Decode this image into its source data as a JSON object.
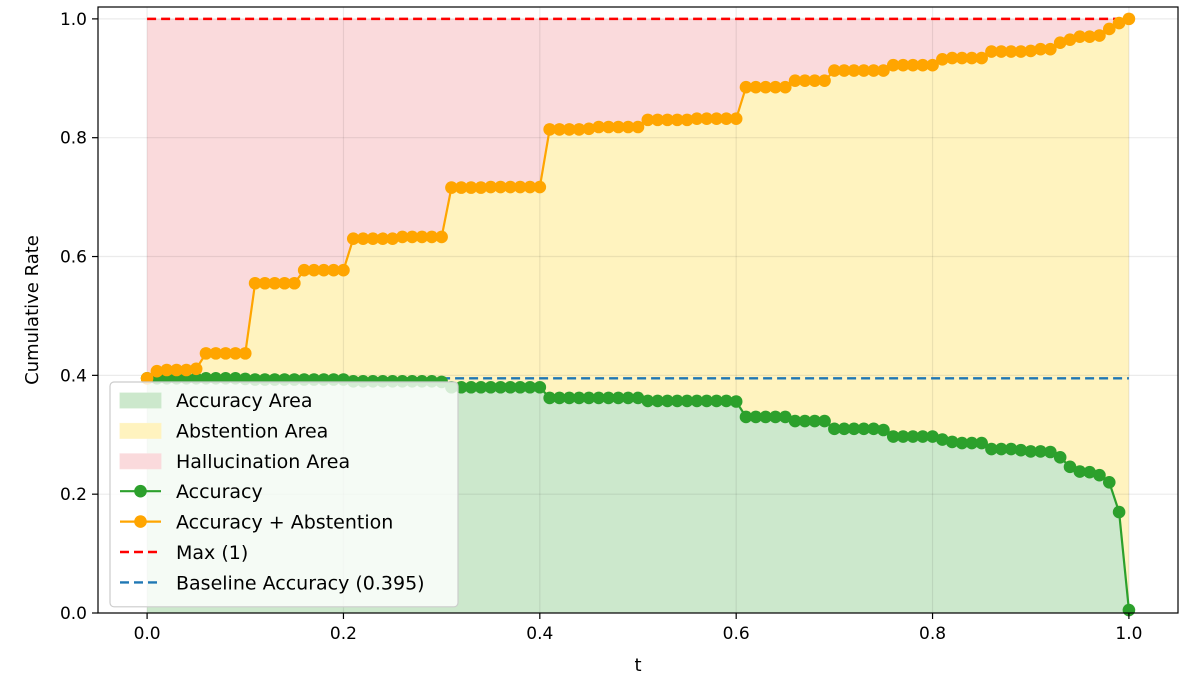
{
  "chart_data": {
    "type": "area",
    "title": "",
    "xlabel": "t",
    "ylabel": "Cumulative Rate",
    "xlim": [
      -0.05,
      1.05
    ],
    "ylim": [
      0.0,
      1.02
    ],
    "xticks": [
      "0.0",
      "0.2",
      "0.4",
      "0.6",
      "0.8",
      "1.0"
    ],
    "yticks": [
      "0.0",
      "0.2",
      "0.4",
      "0.6",
      "0.8",
      "1.0"
    ],
    "grid": true,
    "legend_position": "lower-left",
    "colors": {
      "accuracy": "#2ca02c",
      "abstention_line": "#ffa500",
      "accuracy_area": "#cce8cc",
      "abstention_area": "#fff3bf",
      "hallucination_area": "#fadadc",
      "max_line": "#ff0000",
      "baseline_line": "#1f77b4"
    },
    "x": [
      0.0,
      0.01,
      0.02,
      0.03,
      0.04,
      0.05,
      0.06,
      0.07,
      0.08,
      0.09,
      0.1,
      0.11,
      0.12,
      0.13,
      0.14,
      0.15,
      0.16,
      0.17,
      0.18,
      0.19,
      0.2,
      0.21,
      0.22,
      0.23,
      0.24,
      0.25,
      0.26,
      0.27,
      0.28,
      0.29,
      0.3,
      0.31,
      0.32,
      0.33,
      0.34,
      0.35,
      0.36,
      0.37,
      0.38,
      0.39,
      0.4,
      0.41,
      0.42,
      0.43,
      0.44,
      0.45,
      0.46,
      0.47,
      0.48,
      0.49,
      0.5,
      0.51,
      0.52,
      0.53,
      0.54,
      0.55,
      0.56,
      0.57,
      0.58,
      0.59,
      0.6,
      0.61,
      0.62,
      0.63,
      0.64,
      0.65,
      0.66,
      0.67,
      0.68,
      0.69,
      0.7,
      0.71,
      0.72,
      0.73,
      0.74,
      0.75,
      0.76,
      0.77,
      0.78,
      0.79,
      0.8,
      0.81,
      0.82,
      0.83,
      0.84,
      0.85,
      0.86,
      0.87,
      0.88,
      0.89,
      0.9,
      0.91,
      0.92,
      0.93,
      0.94,
      0.95,
      0.96,
      0.97,
      0.98,
      0.99,
      1.0
    ],
    "series": [
      {
        "name": "Accuracy",
        "values": [
          0.395,
          0.395,
          0.395,
          0.395,
          0.395,
          0.395,
          0.395,
          0.395,
          0.395,
          0.395,
          0.394,
          0.393,
          0.393,
          0.393,
          0.393,
          0.393,
          0.393,
          0.393,
          0.393,
          0.393,
          0.393,
          0.39,
          0.39,
          0.39,
          0.39,
          0.39,
          0.39,
          0.39,
          0.39,
          0.39,
          0.389,
          0.38,
          0.38,
          0.38,
          0.38,
          0.38,
          0.38,
          0.38,
          0.38,
          0.38,
          0.38,
          0.362,
          0.362,
          0.362,
          0.362,
          0.362,
          0.362,
          0.362,
          0.362,
          0.362,
          0.362,
          0.357,
          0.357,
          0.357,
          0.357,
          0.357,
          0.357,
          0.357,
          0.357,
          0.357,
          0.356,
          0.33,
          0.33,
          0.33,
          0.33,
          0.33,
          0.323,
          0.323,
          0.323,
          0.323,
          0.31,
          0.31,
          0.31,
          0.31,
          0.31,
          0.308,
          0.297,
          0.297,
          0.297,
          0.297,
          0.297,
          0.292,
          0.288,
          0.286,
          0.286,
          0.286,
          0.276,
          0.276,
          0.276,
          0.274,
          0.272,
          0.272,
          0.271,
          0.262,
          0.246,
          0.238,
          0.237,
          0.232,
          0.22,
          0.17,
          0.005
        ]
      },
      {
        "name": "Accuracy + Abstention",
        "values": [
          0.395,
          0.407,
          0.409,
          0.409,
          0.409,
          0.411,
          0.437,
          0.437,
          0.437,
          0.437,
          0.437,
          0.555,
          0.555,
          0.555,
          0.555,
          0.555,
          0.577,
          0.577,
          0.577,
          0.577,
          0.577,
          0.63,
          0.63,
          0.63,
          0.63,
          0.63,
          0.633,
          0.633,
          0.633,
          0.633,
          0.633,
          0.716,
          0.716,
          0.716,
          0.716,
          0.717,
          0.717,
          0.717,
          0.717,
          0.717,
          0.717,
          0.814,
          0.814,
          0.814,
          0.814,
          0.815,
          0.818,
          0.818,
          0.818,
          0.818,
          0.818,
          0.83,
          0.83,
          0.83,
          0.83,
          0.83,
          0.832,
          0.832,
          0.832,
          0.832,
          0.832,
          0.885,
          0.885,
          0.885,
          0.885,
          0.885,
          0.896,
          0.896,
          0.896,
          0.896,
          0.913,
          0.913,
          0.913,
          0.913,
          0.913,
          0.913,
          0.922,
          0.922,
          0.922,
          0.922,
          0.922,
          0.932,
          0.934,
          0.934,
          0.934,
          0.934,
          0.945,
          0.945,
          0.945,
          0.945,
          0.946,
          0.949,
          0.949,
          0.96,
          0.965,
          0.97,
          0.97,
          0.972,
          0.983,
          0.993,
          1.0
        ]
      }
    ],
    "max_value": 1.0,
    "baseline_value": 0.395,
    "legend": [
      {
        "label": "Accuracy Area",
        "kind": "patch",
        "color_key": "accuracy_area"
      },
      {
        "label": "Abstention Area",
        "kind": "patch",
        "color_key": "abstention_area"
      },
      {
        "label": "Hallucination Area",
        "kind": "patch",
        "color_key": "hallucination_area"
      },
      {
        "label": "Accuracy",
        "kind": "line-marker",
        "color_key": "accuracy"
      },
      {
        "label": "Accuracy + Abstention",
        "kind": "line-marker",
        "color_key": "abstention_line"
      },
      {
        "label": "Max (1)",
        "kind": "dashed",
        "color_key": "max_line"
      },
      {
        "label": "Baseline Accuracy (0.395)",
        "kind": "dashed",
        "color_key": "baseline_line"
      }
    ]
  }
}
